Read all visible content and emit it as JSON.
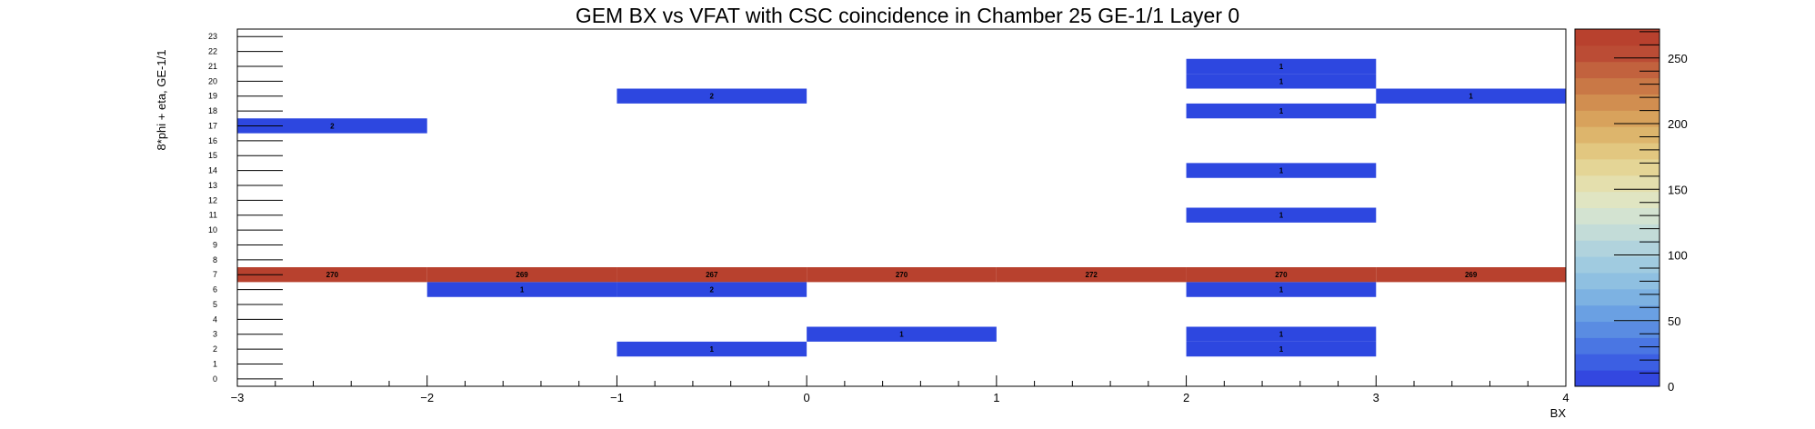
{
  "chart_data": {
    "type": "heatmap",
    "title": "GEM BX vs VFAT with CSC coincidence in Chamber 25 GE-1/1 Layer 0",
    "xlabel": "BX",
    "ylabel": "8*phi + eta, GE-1/1",
    "xlim": [
      -3,
      4
    ],
    "ylim": [
      0,
      24
    ],
    "x_ticks": [
      "−3",
      "−2",
      "−1",
      "0",
      "1",
      "2",
      "3",
      "4"
    ],
    "y_ticks": [
      "0",
      "1",
      "2",
      "3",
      "4",
      "5",
      "6",
      "7",
      "8",
      "9",
      "10",
      "11",
      "12",
      "13",
      "14",
      "15",
      "16",
      "17",
      "18",
      "19",
      "20",
      "21",
      "22",
      "23"
    ],
    "z_ticks": [
      "0",
      "50",
      "100",
      "150",
      "200",
      "250"
    ],
    "zlim": [
      0,
      272
    ],
    "cells": [
      {
        "x0": -3,
        "x1": -2,
        "y": 17,
        "value": 2,
        "label": "2"
      },
      {
        "x0": -1,
        "x1": 0,
        "y": 19,
        "value": 2,
        "label": "2"
      },
      {
        "x0": 2,
        "x1": 3,
        "y": 21,
        "value": 1,
        "label": "1"
      },
      {
        "x0": 2,
        "x1": 3,
        "y": 20,
        "value": 1,
        "label": "1"
      },
      {
        "x0": 2,
        "x1": 3,
        "y": 18,
        "value": 1,
        "label": "1"
      },
      {
        "x0": 3,
        "x1": 4,
        "y": 19,
        "value": 1,
        "label": "1"
      },
      {
        "x0": 2,
        "x1": 3,
        "y": 14,
        "value": 1,
        "label": "1"
      },
      {
        "x0": 2,
        "x1": 3,
        "y": 11,
        "value": 1,
        "label": "1"
      },
      {
        "x0": -3,
        "x1": -2,
        "y": 7,
        "value": 270,
        "label": "270"
      },
      {
        "x0": -2,
        "x1": -1,
        "y": 7,
        "value": 269,
        "label": "269"
      },
      {
        "x0": -1,
        "x1": 0,
        "y": 7,
        "value": 267,
        "label": "267"
      },
      {
        "x0": 0,
        "x1": 1,
        "y": 7,
        "value": 270,
        "label": "270"
      },
      {
        "x0": 1,
        "x1": 2,
        "y": 7,
        "value": 272,
        "label": "272"
      },
      {
        "x0": 2,
        "x1": 3,
        "y": 7,
        "value": 270,
        "label": "270"
      },
      {
        "x0": 3,
        "x1": 4,
        "y": 7,
        "value": 269,
        "label": "269"
      },
      {
        "x0": -2,
        "x1": -1,
        "y": 6,
        "value": 1,
        "label": "1"
      },
      {
        "x0": -1,
        "x1": 0,
        "y": 6,
        "value": 2,
        "label": "2"
      },
      {
        "x0": 2,
        "x1": 3,
        "y": 6,
        "value": 1,
        "label": "1"
      },
      {
        "x0": 0,
        "x1": 1,
        "y": 3,
        "value": 1,
        "label": "1"
      },
      {
        "x0": 2,
        "x1": 3,
        "y": 3,
        "value": 1,
        "label": "1"
      },
      {
        "x0": -1,
        "x1": 0,
        "y": 2,
        "value": 1,
        "label": "1"
      },
      {
        "x0": 2,
        "x1": 3,
        "y": 2,
        "value": 1,
        "label": "1"
      }
    ],
    "palette": [
      "#3347e0",
      "#3c5fe3",
      "#4a76e3",
      "#5a8ce2",
      "#6aa0e3",
      "#7db2e2",
      "#8fc0e1",
      "#a0cbe0",
      "#b1d3dd",
      "#c3dcd8",
      "#d3e3d1",
      "#e0e5c2",
      "#e4dfad",
      "#e4d596",
      "#e2c780",
      "#ddb56c",
      "#d8a25c",
      "#d18e50",
      "#c97846",
      "#c2623e",
      "#bb4c35",
      "#b8412e"
    ],
    "cell_colors": {
      "low": "#2d47e0",
      "high": "#b8412e"
    },
    "grid": false
  }
}
